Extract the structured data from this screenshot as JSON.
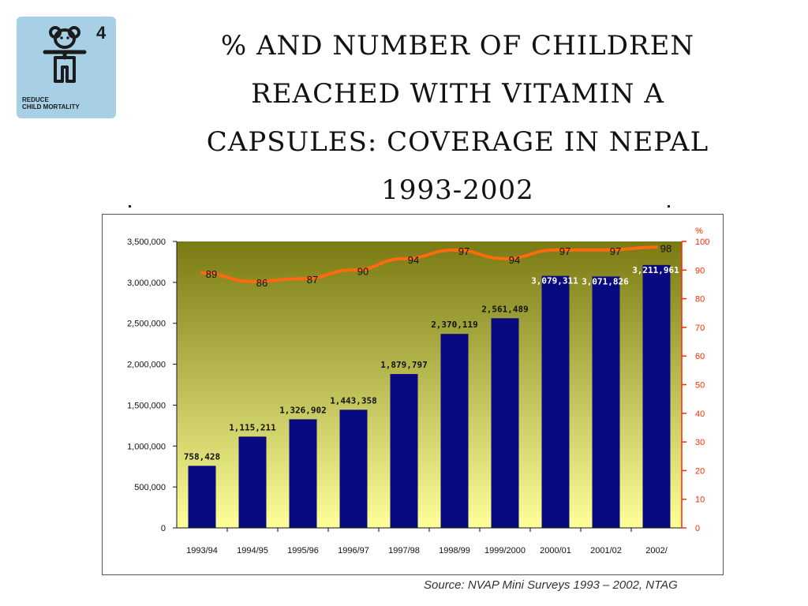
{
  "logo": {
    "goal_number": "4",
    "goal_text_line1": "REDUCE",
    "goal_text_line2": "CHILD MORTALITY",
    "icon": "child-figure-icon"
  },
  "title_lines": [
    "% AND NUMBER OF CHILDREN",
    "REACHED WITH VITAMIN A",
    "CAPSULES: COVERAGE IN NEPAL",
    "1993-2002"
  ],
  "source": "Source: NVAP Mini Surveys 1993 – 2002, NTAG",
  "chart_data": {
    "type": "bar",
    "categories": [
      "1993/94",
      "1994/95",
      "1995/96",
      "1996/97",
      "1997/98",
      "1998/99",
      "1999/2000",
      "2000/01",
      "2001/02",
      "2002/"
    ],
    "series": [
      {
        "axis": "left",
        "type": "bar",
        "values": [
          758428,
          1115211,
          1326902,
          1443358,
          1879797,
          2370119,
          2561489,
          3079311,
          3071826,
          3211961
        ],
        "labels": [
          "758,428",
          "1,115,211",
          "1,326,902",
          "1,443,358",
          "1,879,797",
          "2,370,119",
          "2,561,489",
          "3,079,311",
          "3,071,826",
          "3,211,961"
        ],
        "color": "#0a0a80"
      },
      {
        "axis": "right",
        "type": "line",
        "values": [
          89,
          86,
          87,
          90,
          94,
          97,
          94,
          97,
          97,
          98
        ],
        "labels": [
          "89",
          "86",
          "87",
          "90",
          "94",
          "97",
          "94",
          "97",
          "97",
          "98"
        ],
        "color": "#ff6a10"
      }
    ],
    "y_left": {
      "range": [
        0,
        3500000
      ],
      "ticks": [
        "0",
        "500,000",
        "1,000,000",
        "1,500,000",
        "2,000,000",
        "2,500,000",
        "3,000,000",
        "3,500,000"
      ]
    },
    "y_right": {
      "label": "%",
      "range": [
        0,
        100
      ],
      "ticks": [
        "0",
        "10",
        "20",
        "30",
        "40",
        "50",
        "60",
        "70",
        "80",
        "90",
        "100"
      ],
      "color": "#ff2a00"
    },
    "background_gradient": [
      "#7a7a12",
      "#ffff99"
    ],
    "grid": false
  }
}
